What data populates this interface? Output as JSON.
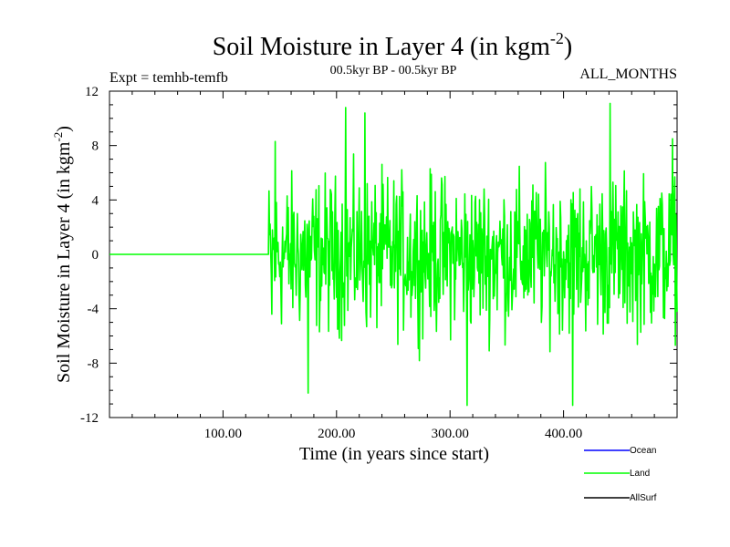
{
  "chart_data": {
    "type": "line",
    "title": "Soil Moisture in Layer 4 (in kgm",
    "title_sup": "-2",
    "title_close": ")",
    "subtitle_left": "Expt = temhb-temfb",
    "subtitle_center": "00.5kyr BP - 00.5kyr BP",
    "subtitle_right": "ALL_MONTHS",
    "xlabel": "Time (in years since start)",
    "ylabel": "Soil Moisture in Layer 4 (in kgm",
    "ylabel_sup": "-2",
    "ylabel_close": ")",
    "xlim": [
      0,
      500
    ],
    "ylim": [
      -12,
      12
    ],
    "x_ticks": [
      {
        "value": 100,
        "label": "100.00"
      },
      {
        "value": 200,
        "label": "200.00"
      },
      {
        "value": 300,
        "label": "300.00"
      },
      {
        "value": 400,
        "label": "400.00"
      }
    ],
    "y_ticks": [
      {
        "value": 12,
        "label": "12"
      },
      {
        "value": 8,
        "label": "8"
      },
      {
        "value": 4,
        "label": "4"
      },
      {
        "value": 0,
        "label": "0"
      },
      {
        "value": -4,
        "label": "-4"
      },
      {
        "value": -8,
        "label": "-8"
      },
      {
        "value": -12,
        "label": "-12"
      }
    ],
    "legend_position": "bottom-right",
    "series": [
      {
        "name": "Ocean",
        "color": "#0000ff",
        "values": []
      },
      {
        "name": "Land",
        "color": "#00ff00",
        "zero_until": 140,
        "x_end": 500,
        "noise_amplitude": 11,
        "peaks": [
          {
            "x": 143,
            "y": -4.4
          },
          {
            "x": 146,
            "y": 8.3
          },
          {
            "x": 175,
            "y": -10.2
          },
          {
            "x": 208,
            "y": 10.8
          },
          {
            "x": 225,
            "y": 10.4
          },
          {
            "x": 315,
            "y": -11.1
          },
          {
            "x": 408,
            "y": -11.1
          },
          {
            "x": 441,
            "y": 11.1
          },
          {
            "x": 496,
            "y": 8.5
          }
        ]
      },
      {
        "name": "AllSurf",
        "color": "#000000",
        "values": []
      }
    ]
  }
}
